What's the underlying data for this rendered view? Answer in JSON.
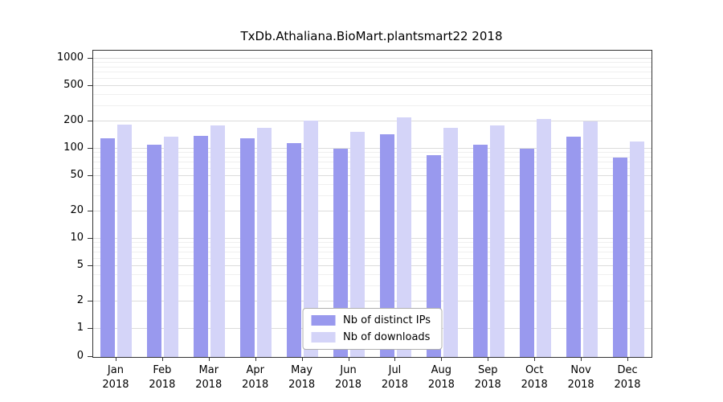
{
  "chart_data": {
    "type": "bar",
    "title": "TxDb.Athaliana.BioMart.plantsmart22 2018",
    "categories": [
      "Jan",
      "Feb",
      "Mar",
      "Apr",
      "May",
      "Jun",
      "Jul",
      "Aug",
      "Sep",
      "Oct",
      "Nov",
      "Dec"
    ],
    "year_label": "2018",
    "series": [
      {
        "name": "Nb of distinct IPs",
        "color": "#9999ee",
        "values": [
          130,
          110,
          140,
          130,
          115,
          100,
          145,
          85,
          110,
          100,
          135,
          80
        ]
      },
      {
        "name": "Nb of downloads",
        "color": "#d4d4f8",
        "values": [
          185,
          135,
          180,
          170,
          205,
          155,
          225,
          170,
          180,
          215,
          200,
          120
        ]
      }
    ],
    "yticks": [
      0,
      1,
      2,
      5,
      10,
      20,
      50,
      100,
      200,
      500,
      1000
    ],
    "minor_ticks": [
      3,
      4,
      6,
      7,
      8,
      9,
      30,
      40,
      60,
      70,
      80,
      90,
      300,
      400,
      600,
      700,
      800,
      900
    ],
    "scale": "log",
    "grid": true,
    "legend_position": "bottom-center"
  }
}
